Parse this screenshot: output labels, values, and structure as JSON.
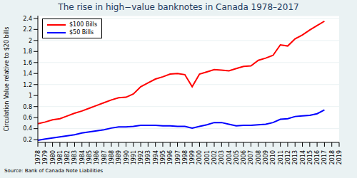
{
  "chart_data": {
    "type": "line",
    "title": "The rise in high−value banknotes in Canada 1978–2017",
    "ylabel": "Circulation Value relative to $20 bills",
    "annotations": [
      "Source: Bank of Canada Note Liabilities"
    ],
    "categories": [
      "1978",
      "1979",
      "1980",
      "1981",
      "1982",
      "1983",
      "1984",
      "1985",
      "1986",
      "1987",
      "1988",
      "1989",
      "1990",
      "1991",
      "1992",
      "1993",
      "1994",
      "1995",
      "1996",
      "1997",
      "1998",
      "1999",
      "2000",
      "2001",
      "2002",
      "2003",
      "2004",
      "2005",
      "2006",
      "2007",
      "2008",
      "2009",
      "2010",
      "2011",
      "2012",
      "2013",
      "2014",
      "2015",
      "2016",
      "2017",
      "2018",
      "2019"
    ],
    "series": [
      {
        "name": "$100 Bills",
        "color": "#ff0000",
        "values": [
          0.49,
          0.52,
          0.56,
          0.58,
          0.63,
          0.68,
          0.72,
          0.77,
          0.82,
          0.87,
          0.92,
          0.96,
          0.97,
          1.03,
          1.16,
          1.23,
          1.3,
          1.34,
          1.39,
          1.4,
          1.38,
          1.16,
          1.39,
          1.43,
          1.47,
          1.46,
          1.45,
          1.49,
          1.53,
          1.54,
          1.64,
          1.68,
          1.73,
          1.92,
          1.9,
          2.03,
          2.1,
          2.19,
          2.27,
          2.35,
          null,
          null
        ]
      },
      {
        "name": "$50 Bills",
        "color": "#0000ff",
        "values": [
          0.19,
          0.21,
          0.23,
          0.25,
          0.27,
          0.29,
          0.32,
          0.34,
          0.36,
          0.38,
          0.41,
          0.43,
          0.43,
          0.44,
          0.46,
          0.46,
          0.46,
          0.45,
          0.45,
          0.44,
          0.44,
          0.41,
          0.44,
          0.47,
          0.51,
          0.51,
          0.48,
          0.45,
          0.46,
          0.46,
          0.47,
          0.48,
          0.51,
          0.57,
          0.58,
          0.62,
          0.63,
          0.64,
          0.67,
          0.74,
          null,
          null
        ]
      }
    ],
    "ylim": [
      0.15,
      2.45
    ],
    "yticks": [
      0.2,
      0.4,
      0.6,
      0.8,
      1,
      1.2,
      1.4,
      1.6,
      1.8,
      2,
      2.2,
      2.4
    ],
    "grid": true,
    "legend": "upper left"
  }
}
